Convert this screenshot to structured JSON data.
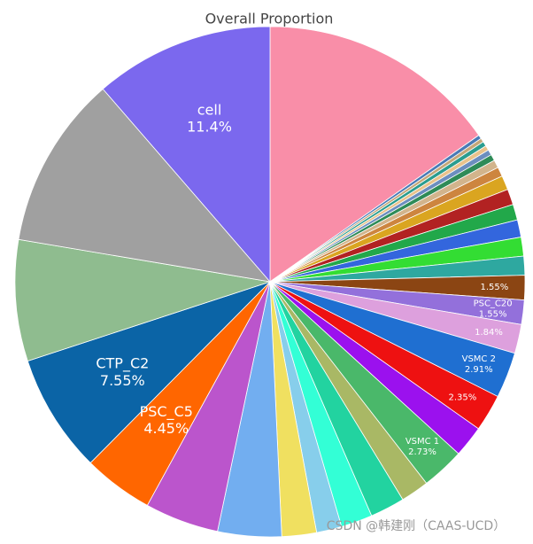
{
  "chart_data": {
    "type": "pie",
    "title": "Overall Proportion",
    "categories": [
      null,
      null,
      null,
      null,
      null,
      null,
      null,
      null,
      null,
      null,
      null,
      null,
      null,
      null,
      null,
      null,
      "PSC_C20",
      null,
      "VSMC 2",
      null,
      null,
      "VSMC 1",
      null,
      null,
      null,
      null,
      null,
      null,
      null,
      "PSC_C5",
      "CTP_C2",
      null,
      null,
      "cell"
    ],
    "values": [
      15.3,
      0.25,
      0.25,
      0.3,
      0.3,
      0.35,
      0.4,
      0.5,
      0.6,
      0.9,
      1.0,
      1.0,
      1.1,
      1.2,
      1.2,
      1.55,
      1.55,
      1.84,
      2.91,
      2.35,
      2.0,
      2.73,
      1.8,
      2.2,
      2.0,
      1.6,
      2.2,
      4.05,
      4.7,
      4.45,
      7.55,
      7.7,
      11.0,
      11.4
    ],
    "value_labels": [
      null,
      null,
      null,
      null,
      null,
      null,
      null,
      null,
      null,
      null,
      null,
      null,
      null,
      null,
      null,
      "1.55%",
      "1.55%",
      "1.84%",
      "2.91%",
      "2.35%",
      null,
      "2.73%",
      null,
      null,
      null,
      null,
      null,
      null,
      null,
      "4.45%",
      "7.55%",
      null,
      null,
      "11.4%"
    ],
    "colors": [
      "#f98ea8",
      "#4a7ab6",
      "#c4a779",
      "#2a9d8f",
      "#e9c28b",
      "#6c8ebf",
      "#2e8b57",
      "#d2b48c",
      "#cd853f",
      "#daa520",
      "#b22222",
      "#22a84a",
      "#3366dd",
      "#33dd33",
      "#2ea8a0",
      "#8b4513",
      "#9370db",
      "#dda0dd",
      "#1f6fd1",
      "#ee1111",
      "#9b11ee",
      "#4ab86a",
      "#a9b865",
      "#22d3a0",
      "#33ffd6",
      "#87ceeb",
      "#f0e060",
      "#72aef0",
      "#bb55cc",
      "#ff6600",
      "#0b64a6",
      "#8fbc8f",
      "#a0a0a0",
      "#7b68ee"
    ],
    "watermark": "CSDN @韩建刚（CAAS-UCD）"
  }
}
